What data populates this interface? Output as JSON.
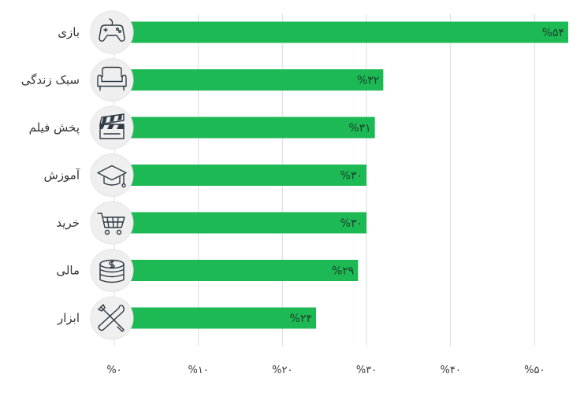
{
  "chart_data": {
    "type": "bar",
    "orientation": "horizontal",
    "categories": [
      "بازی",
      "سبک زندگی",
      "پخش فیلم",
      "آموزش",
      "خرید",
      "مالی",
      "ابزار"
    ],
    "values": [
      54,
      32,
      31,
      30,
      30,
      29,
      24
    ],
    "value_labels": [
      "%۵۴",
      "%۳۲",
      "%۳۱",
      "%۳۰",
      "%۳۰",
      "%۲۹",
      "%۲۴"
    ],
    "icons": [
      "gamepad-icon",
      "armchair-icon",
      "clapperboard-icon",
      "graduation-cap-icon",
      "shopping-cart-icon",
      "coins-icon",
      "tools-icon"
    ],
    "xlim": [
      0,
      54
    ],
    "ticks": [
      0,
      10,
      20,
      30,
      40,
      50
    ],
    "tick_labels": [
      "%۰",
      "%۱۰",
      "%۲۰",
      "%۳۰",
      "%۴۰",
      "%۵۰"
    ],
    "grid": true,
    "bar_color": "#1db954",
    "grid_color": "#d4dde3",
    "icon_bg_color": "#efefef"
  }
}
